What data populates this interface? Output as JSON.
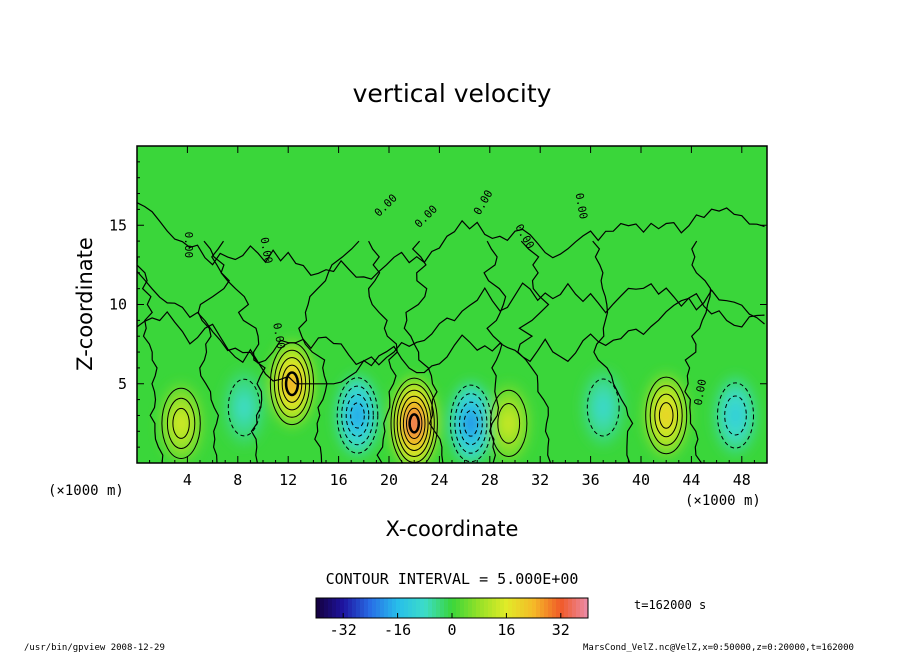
{
  "chart_data": {
    "type": "heatmap",
    "title": "vertical velocity",
    "xlabel": "X-coordinate",
    "ylabel": "Z-coordinate",
    "x_unit_left": "(×1000 m)",
    "x_unit_right": "(×1000 m)",
    "xlim": [
      0,
      50
    ],
    "ylim": [
      0,
      20
    ],
    "x_ticks": [
      "4",
      "8",
      "12",
      "16",
      "20",
      "24",
      "28",
      "32",
      "36",
      "40",
      "44",
      "48"
    ],
    "x_tick_values": [
      4,
      8,
      12,
      16,
      20,
      24,
      28,
      32,
      36,
      40,
      44,
      48
    ],
    "y_ticks": [
      "5",
      "10",
      "15"
    ],
    "y_tick_values": [
      5,
      10,
      15
    ],
    "contour_interval_text": "CONTOUR INTERVAL = 5.000E+00",
    "contour_interval": 5,
    "contour_labels": [
      "0.00",
      "0.00",
      "0.00",
      "0.00",
      "0.00",
      "0.00",
      "0.00",
      "0.00",
      "0.00"
    ],
    "time_label": "t=162000 s",
    "colorbar": {
      "range": [
        -40,
        40
      ],
      "tick_labels": [
        "-32",
        "-16",
        "0",
        "16",
        "32"
      ],
      "tick_values": [
        -32,
        -16,
        0,
        16,
        32
      ]
    },
    "cells": [
      {
        "x": 3.5,
        "z": 2.5,
        "w": 15,
        "sign": "positive"
      },
      {
        "x": 8.5,
        "z": 3.5,
        "w": -8,
        "sign": "negative"
      },
      {
        "x": 12.3,
        "z": 5.0,
        "w": 28,
        "sign": "positive"
      },
      {
        "x": 17.5,
        "z": 3.0,
        "w": -20,
        "sign": "negative"
      },
      {
        "x": 22.0,
        "z": 2.5,
        "w": 38,
        "sign": "positive"
      },
      {
        "x": 26.5,
        "z": 2.5,
        "w": -22,
        "sign": "negative"
      },
      {
        "x": 29.5,
        "z": 2.5,
        "w": 14,
        "sign": "positive"
      },
      {
        "x": 37.0,
        "z": 3.5,
        "w": -9,
        "sign": "negative"
      },
      {
        "x": 42.0,
        "z": 3.0,
        "w": 22,
        "sign": "positive"
      },
      {
        "x": 47.5,
        "z": 3.0,
        "w": -12,
        "sign": "negative"
      }
    ],
    "grid": false
  },
  "footer": {
    "program": "/usr/bin/gpview   2008-12-29",
    "source": "MarsCond_VelZ.nc@VelZ,x=0:50000,z=0:20000,t=162000"
  },
  "colors": {
    "background": "#ffffff",
    "field_zero": "#3ad63a",
    "frame": "#000000"
  }
}
